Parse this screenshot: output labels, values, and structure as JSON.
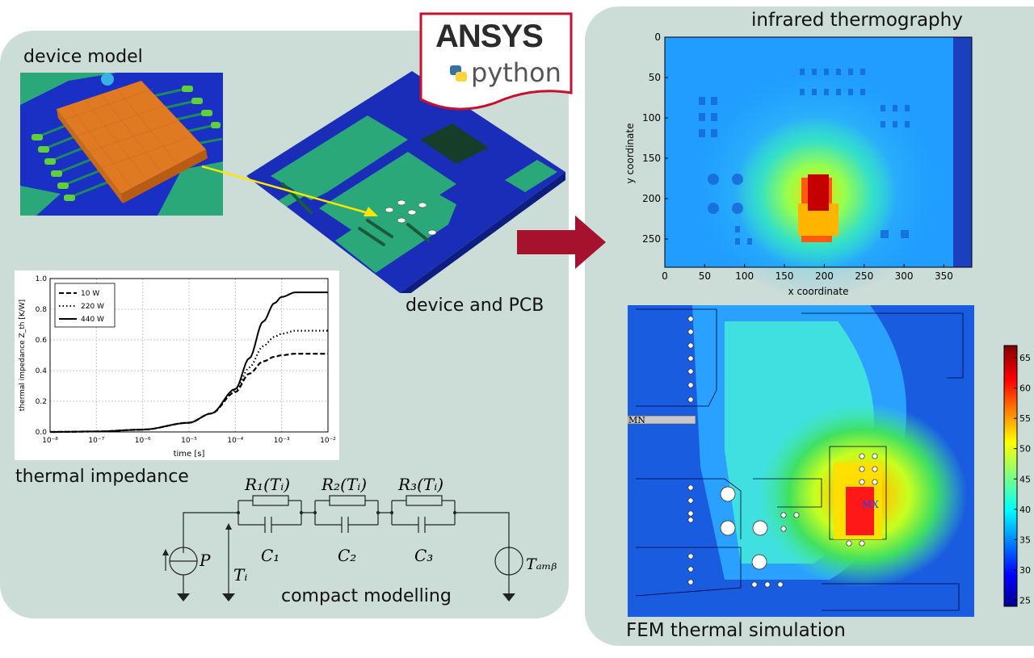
{
  "left_panel": {
    "device_model_label": "device model",
    "device_pcb_label": "device and PCB",
    "thermal_impedance_label": "thermal impedance",
    "compact_modelling_label": "compact modelling"
  },
  "logo": {
    "brand": "ANSYS",
    "language": "python",
    "brand_color": "#c8102e"
  },
  "right_panel": {
    "ir_label": "infrared thermography",
    "fem_label": "FEM thermal simulation",
    "fem_marker_mn": "MN",
    "fem_marker_mx": "MX"
  },
  "circuit": {
    "r1": "R₁(Tᵢ)",
    "r2": "R₂(Tᵢ)",
    "r3": "R₃(Tᵢ)",
    "c1": "C₁",
    "c2": "C₂",
    "c3": "C₃",
    "p": "P",
    "ti": "Tᵢ",
    "tamb": "Tₐₘᵦ"
  },
  "chart_data": [
    {
      "type": "line",
      "title": "",
      "xlabel": "time [s]",
      "ylabel": "thermal impedance Z_th [K/W]",
      "xscale": "log",
      "xlim": [
        1e-08,
        0.01
      ],
      "ylim": [
        0,
        1.0
      ],
      "xticks": [
        "10⁻⁸",
        "10⁻⁷",
        "10⁻⁶",
        "10⁻⁵",
        "10⁻⁴",
        "10⁻³",
        "10⁻²"
      ],
      "yticks": [
        "0.0",
        "0.2",
        "0.4",
        "0.6",
        "0.8",
        "1.0"
      ],
      "grid": true,
      "legend_position": "top-left",
      "series": [
        {
          "name": "10 W",
          "style": "dashed",
          "x": [
            1e-08,
            1e-07,
            1e-06,
            1e-05,
            3e-05,
            0.0001,
            0.0002,
            0.0004,
            0.0007,
            0.001,
            0.002,
            0.01
          ],
          "y": [
            0,
            0.003,
            0.015,
            0.06,
            0.12,
            0.26,
            0.38,
            0.46,
            0.49,
            0.5,
            0.51,
            0.51
          ]
        },
        {
          "name": "220 W",
          "style": "dotted",
          "x": [
            1e-08,
            1e-07,
            1e-06,
            1e-05,
            3e-05,
            0.0001,
            0.0002,
            0.0004,
            0.0007,
            0.001,
            0.002,
            0.01
          ],
          "y": [
            0,
            0.003,
            0.015,
            0.06,
            0.12,
            0.27,
            0.42,
            0.56,
            0.62,
            0.64,
            0.66,
            0.66
          ]
        },
        {
          "name": "440 W",
          "style": "solid",
          "x": [
            1e-08,
            1e-07,
            1e-06,
            1e-05,
            3e-05,
            0.0001,
            0.0002,
            0.0004,
            0.0007,
            0.001,
            0.002,
            0.01
          ],
          "y": [
            0,
            0.003,
            0.015,
            0.06,
            0.12,
            0.28,
            0.48,
            0.72,
            0.84,
            0.88,
            0.91,
            0.91
          ]
        }
      ]
    },
    {
      "type": "heatmap",
      "title": "infrared thermography",
      "xlabel": "x coordinate",
      "ylabel": "y coordinate",
      "xlim": [
        0,
        385
      ],
      "ylim": [
        285,
        0
      ],
      "xticks": [
        "0",
        "50",
        "100",
        "150",
        "200",
        "250",
        "300",
        "350"
      ],
      "yticks": [
        "0",
        "50",
        "100",
        "150",
        "200",
        "250"
      ]
    },
    {
      "type": "heatmap",
      "title": "FEM thermal simulation",
      "colorbar_range": [
        24,
        67
      ],
      "colorbar_ticks": [
        "25",
        "30",
        "35",
        "40",
        "45",
        "50",
        "55",
        "60",
        "65"
      ]
    }
  ]
}
